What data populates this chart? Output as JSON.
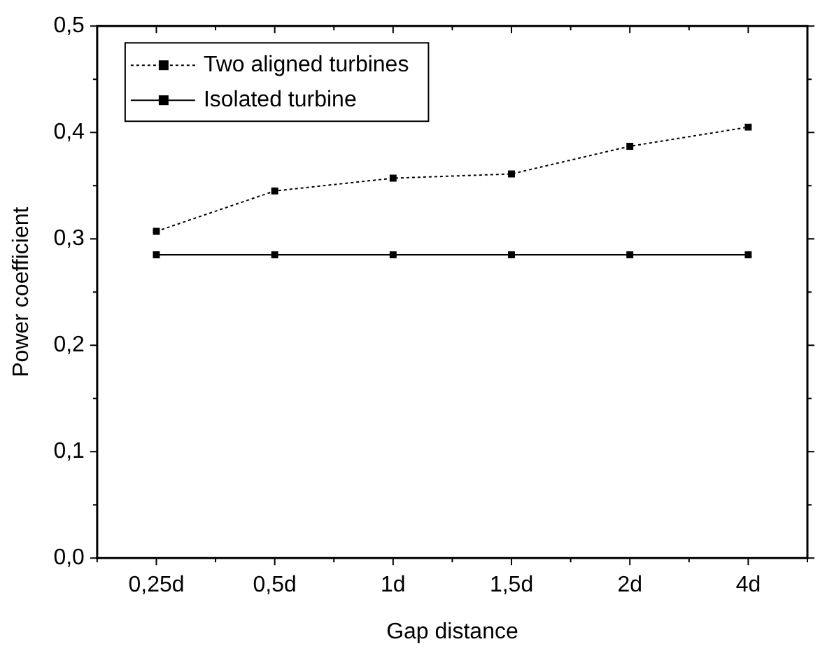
{
  "chart_data": {
    "type": "line",
    "xlabel": "Gap distance",
    "ylabel": "Power coefficient",
    "categories": [
      "0,25d",
      "0,5d",
      "1d",
      "1,5d",
      "2d",
      "4d"
    ],
    "series": [
      {
        "name": "Two aligned turbines",
        "color": "#000000",
        "line_style": "dotted",
        "values": [
          0.307,
          0.345,
          0.357,
          0.361,
          0.387,
          0.405
        ]
      },
      {
        "name": "Isolated turbine",
        "color": "#000000",
        "line_style": "solid",
        "values": [
          0.285,
          0.285,
          0.285,
          0.285,
          0.285,
          0.285
        ]
      }
    ],
    "ylim": [
      0,
      0.5
    ],
    "yticks": [
      {
        "value": 0,
        "label": "0,0"
      },
      {
        "value": 0.1,
        "label": "0,1"
      },
      {
        "value": 0.2,
        "label": "0,2"
      },
      {
        "value": 0.3,
        "label": "0,3"
      },
      {
        "value": 0.4,
        "label": "0,4"
      },
      {
        "value": 0.5,
        "label": "0,5"
      }
    ],
    "grid": false,
    "legend": "top left",
    "marker": "square"
  }
}
